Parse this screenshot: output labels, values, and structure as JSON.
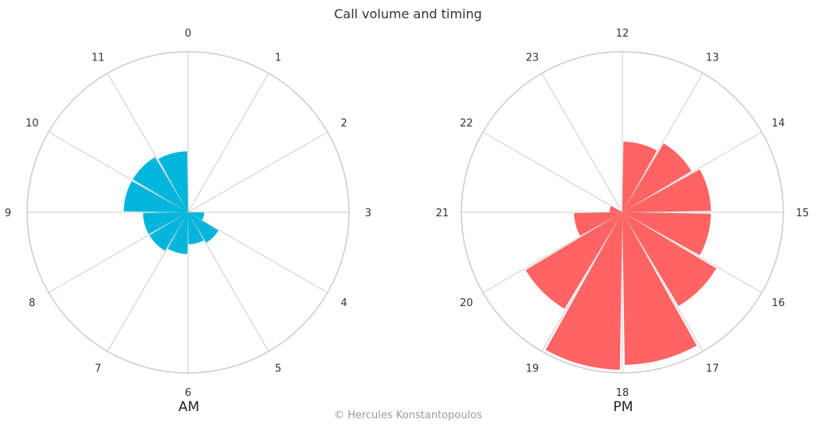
{
  "title": "Call volume and timing",
  "credit": "© Hercules Konstantopoulos",
  "colors": {
    "am": "#00b6dc",
    "pm": "#ff6363",
    "grid": "#cccccc"
  },
  "chart_data": [
    {
      "type": "bar",
      "subtype": "polar",
      "label": "AM",
      "categories": [
        "0",
        "1",
        "2",
        "3",
        "4",
        "5",
        "6",
        "7",
        "8",
        "9",
        "10",
        "11"
      ],
      "values": [
        0,
        0,
        0,
        10,
        22,
        20,
        26,
        28,
        28,
        40,
        40,
        38
      ],
      "rmax": 100,
      "color": "#00b6dc"
    },
    {
      "type": "bar",
      "subtype": "polar",
      "label": "PM",
      "categories": [
        "12",
        "13",
        "14",
        "15",
        "16",
        "17",
        "18",
        "19",
        "20",
        "21",
        "22",
        "23"
      ],
      "values": [
        44,
        50,
        55,
        55,
        68,
        95,
        98,
        70,
        30,
        8,
        0,
        0
      ],
      "rmax": 100,
      "color": "#ff6363"
    }
  ]
}
